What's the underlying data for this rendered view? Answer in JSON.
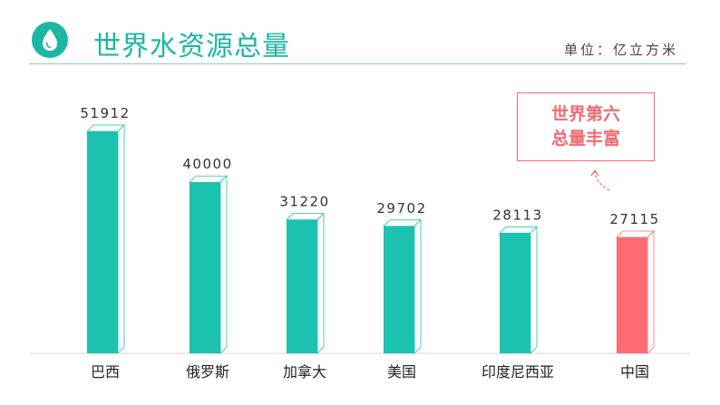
{
  "header": {
    "title": "世界水资源总量",
    "unit_label": "单位：亿立方米",
    "logo_icon": "water-drop-icon"
  },
  "callout": {
    "line1": "世界第六",
    "line2": "总量丰富",
    "arrow_icon": "curved-arrow-icon"
  },
  "colors": {
    "accent": "#1bc3b0",
    "highlight": "#ff6b72",
    "callout": "#f06b73",
    "title": "#1bb7a4"
  },
  "chart_data": {
    "type": "bar",
    "categories": [
      "巴西",
      "俄罗斯",
      "加拿大",
      "美国",
      "印度尼西亚",
      "中国"
    ],
    "values": [
      51912,
      40000,
      31220,
      29702,
      28113,
      27115
    ],
    "highlight_index": 5,
    "title": "世界水资源总量",
    "xlabel": "",
    "ylabel": "",
    "unit": "亿立方米",
    "grid": false,
    "legend": "none"
  }
}
